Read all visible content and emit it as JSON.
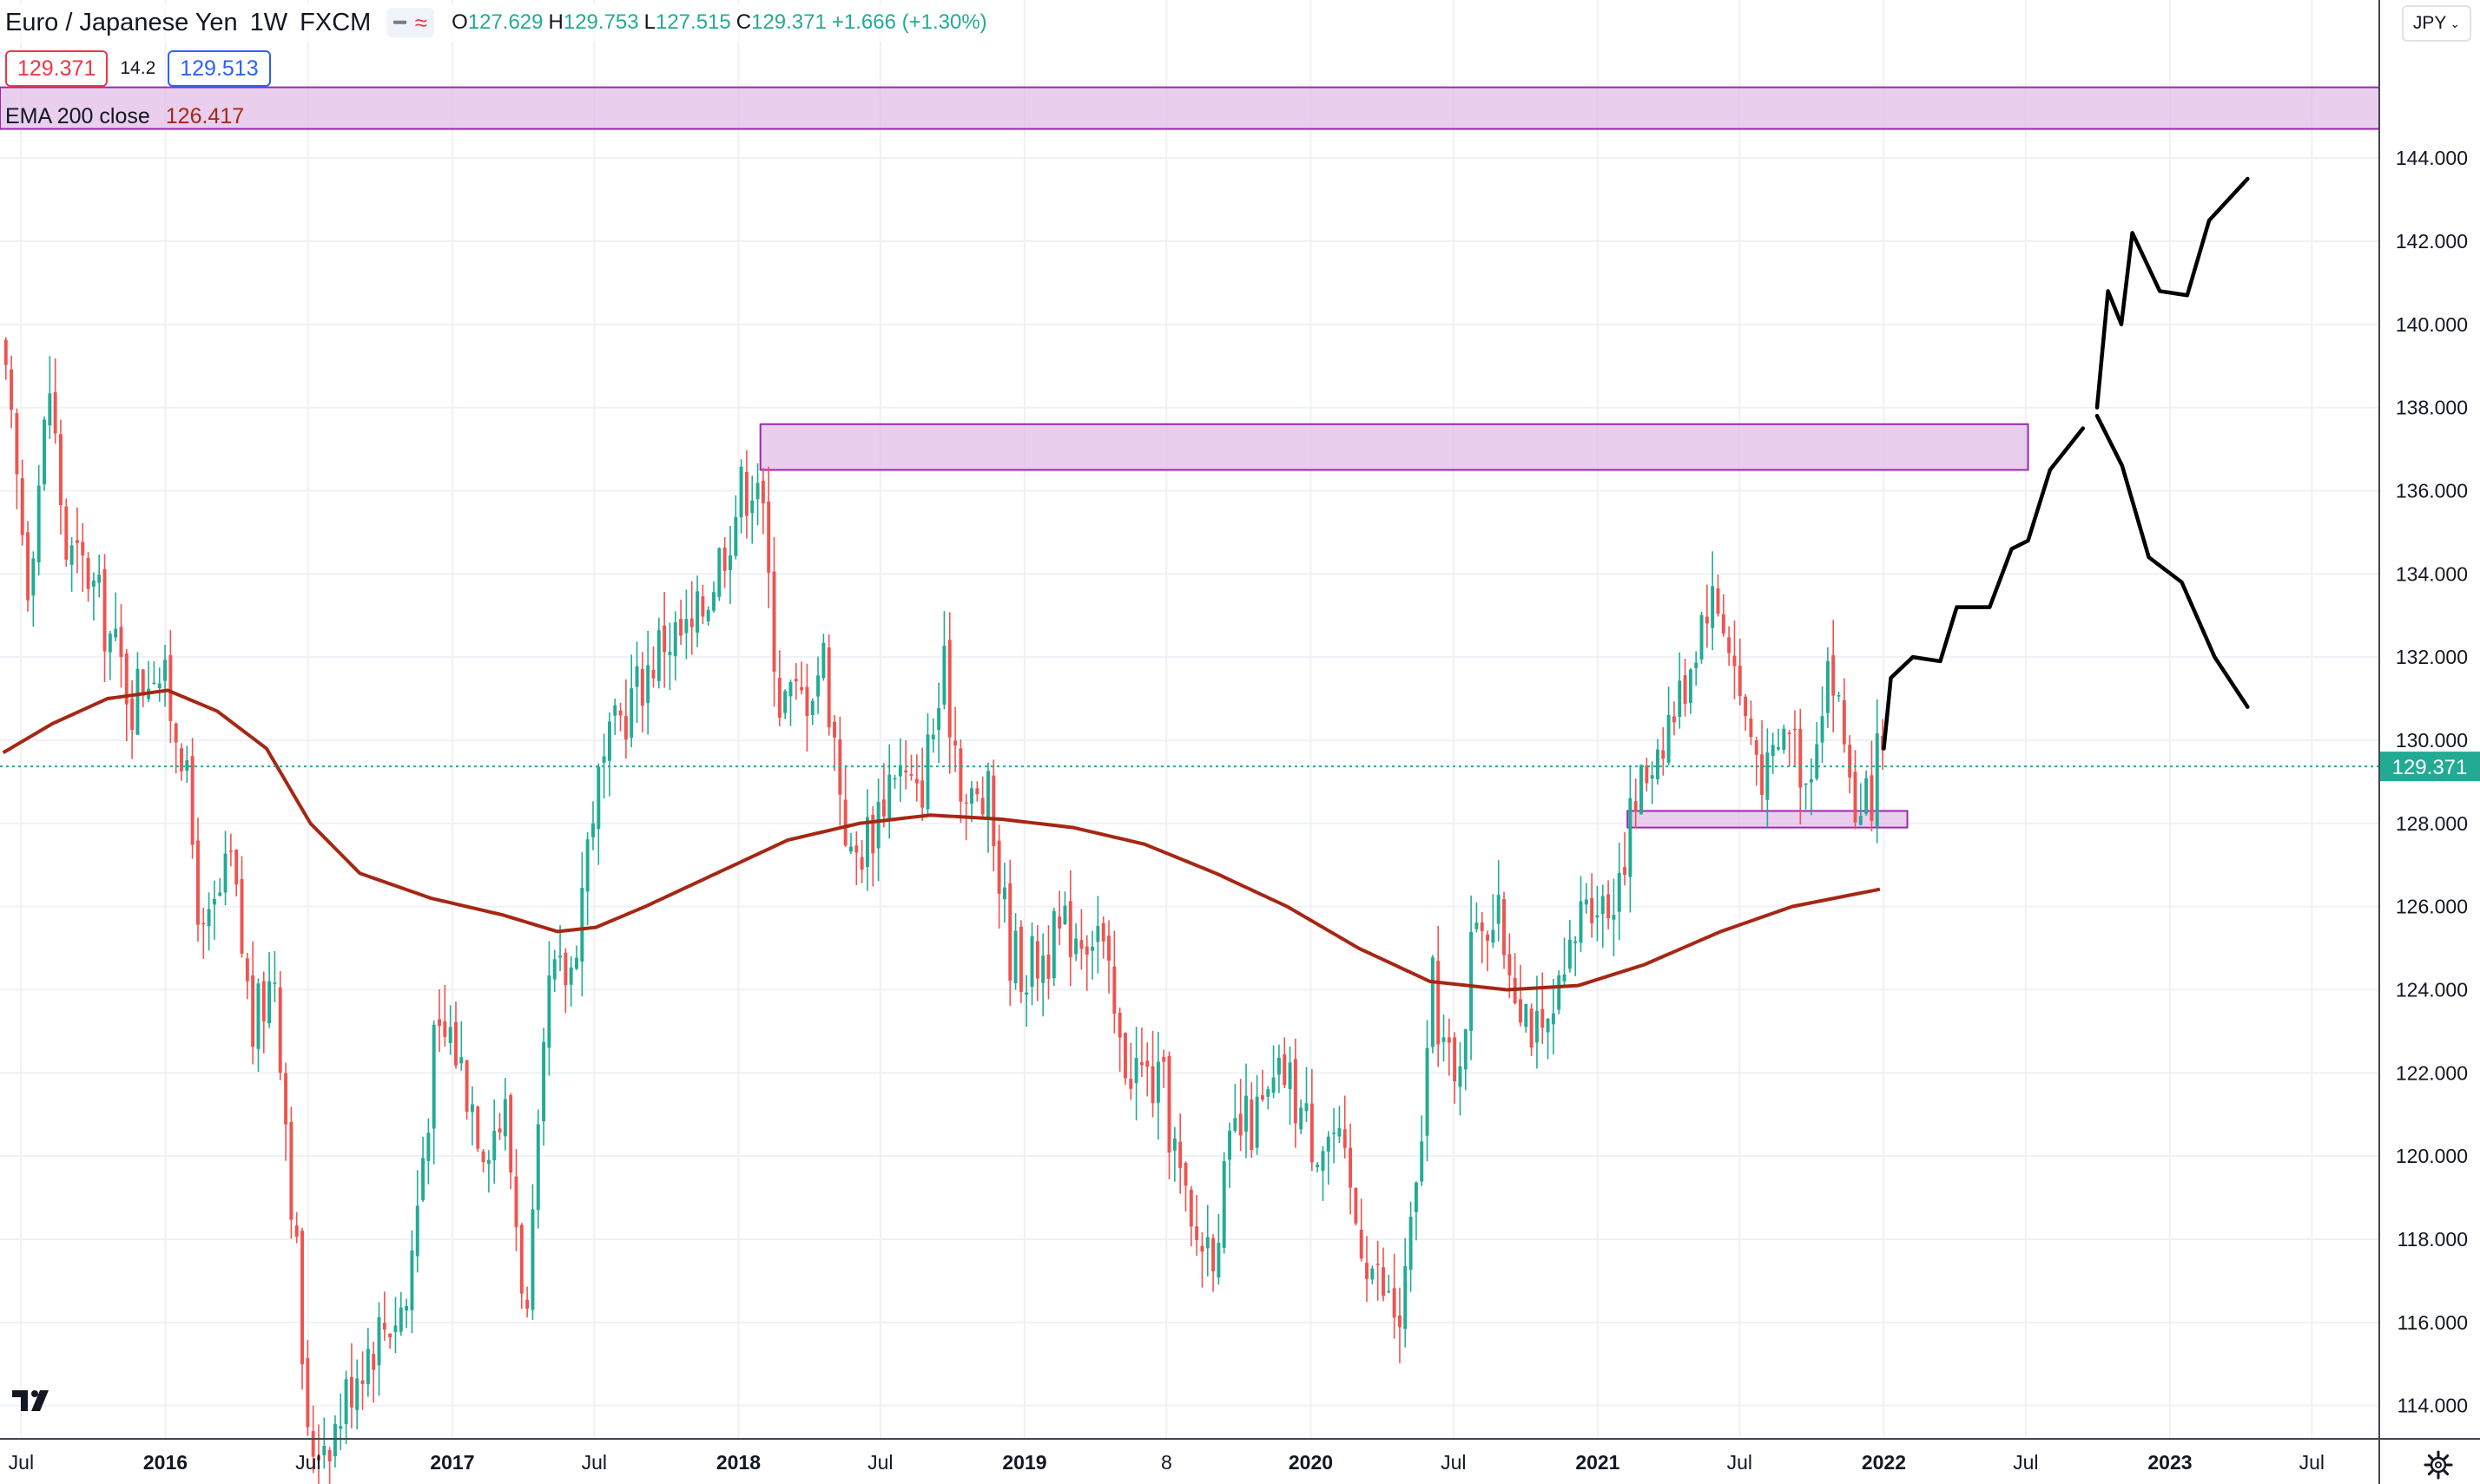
{
  "header": {
    "symbol_title": "Euro / Japanese Yen",
    "interval": "1W",
    "exchange": "FXCM",
    "ohlc": [
      {
        "key": "O",
        "value": "127.629"
      },
      {
        "key": "H",
        "value": "129.753"
      },
      {
        "key": "L",
        "value": "127.515"
      },
      {
        "key": "C",
        "value": "129.371"
      }
    ],
    "change": "+1.666 (+1.30%)",
    "bid_price": "129.371",
    "spread": "14.2",
    "ask_price": "129.513",
    "currency_button": "JPY"
  },
  "indicator": {
    "name": "EMA 200 close",
    "value": "126.417",
    "color": "#a52714"
  },
  "colors": {
    "up": "#22ab94",
    "down": "#ef5350",
    "zone_fill": "#e1bee7",
    "zone_stroke": "#9c27b0",
    "grid": "#eef1f6",
    "current_price": "#22ab94"
  },
  "chart_data": {
    "type": "candlestick",
    "symbol": "EURJPY",
    "timeframe": "1W",
    "y_axis": {
      "range": [
        113.2,
        147.8
      ],
      "ticks": [
        "114.000",
        "116.000",
        "118.000",
        "120.000",
        "122.000",
        "124.000",
        "126.000",
        "128.000",
        "130.000",
        "132.000",
        "134.000",
        "136.000",
        "138.000",
        "140.000",
        "142.000",
        "144.000"
      ],
      "current_price_label": "129.371"
    },
    "x_axis": {
      "range": [
        "2015-06-04",
        "2023-09-25"
      ],
      "ticks": [
        {
          "label": "Jul",
          "date": "2015-07-01",
          "bold": false
        },
        {
          "label": "2016",
          "date": "2016-01-01",
          "bold": true
        },
        {
          "label": "Jul",
          "date": "2016-07-01",
          "bold": false
        },
        {
          "label": "2017",
          "date": "2017-01-01",
          "bold": true
        },
        {
          "label": "Jul",
          "date": "2017-07-01",
          "bold": false
        },
        {
          "label": "2018",
          "date": "2018-01-01",
          "bold": true
        },
        {
          "label": "Jul",
          "date": "2018-07-01",
          "bold": false
        },
        {
          "label": "2019",
          "date": "2019-01-01",
          "bold": true
        },
        {
          "label": "8",
          "date": "2019-07-01",
          "bold": false
        },
        {
          "label": "2020",
          "date": "2020-01-01",
          "bold": true
        },
        {
          "label": "Jul",
          "date": "2020-07-01",
          "bold": false
        },
        {
          "label": "2021",
          "date": "2021-01-01",
          "bold": true
        },
        {
          "label": "Jul",
          "date": "2021-07-01",
          "bold": false
        },
        {
          "label": "2022",
          "date": "2022-01-01",
          "bold": true
        },
        {
          "label": "Jul",
          "date": "2022-07-01",
          "bold": false
        },
        {
          "label": "2023",
          "date": "2023-01-01",
          "bold": true
        },
        {
          "label": "Jul",
          "date": "2023-07-01",
          "bold": false
        }
      ]
    },
    "weeks_from": "2015-06-08",
    "weeks_to": "2021-12-27",
    "price_path_anchors": [
      [
        "2015-06-08",
        139.5
      ],
      [
        "2015-07-13",
        134.0
      ],
      [
        "2015-08-10",
        138.5
      ],
      [
        "2015-08-31",
        134.5
      ],
      [
        "2015-09-28",
        134.0
      ],
      [
        "2015-10-26",
        132.5
      ],
      [
        "2015-11-23",
        131.0
      ],
      [
        "2015-12-21",
        132.0
      ],
      [
        "2016-01-25",
        130.0
      ],
      [
        "2016-02-22",
        125.0
      ],
      [
        "2016-03-28",
        127.0
      ],
      [
        "2016-04-25",
        123.0
      ],
      [
        "2016-05-23",
        124.5
      ],
      [
        "2016-06-20",
        117.5
      ],
      [
        "2016-07-04",
        113.0
      ],
      [
        "2016-08-08",
        113.5
      ],
      [
        "2016-09-05",
        115.0
      ],
      [
        "2016-10-10",
        116.0
      ],
      [
        "2016-11-07",
        116.5
      ],
      [
        "2016-12-12",
        122.5
      ],
      [
        "2017-01-02",
        123.0
      ],
      [
        "2017-02-13",
        120.5
      ],
      [
        "2017-03-13",
        121.0
      ],
      [
        "2017-04-10",
        116.0
      ],
      [
        "2017-05-08",
        124.0
      ],
      [
        "2017-06-05",
        124.5
      ],
      [
        "2017-07-03",
        128.5
      ],
      [
        "2017-08-07",
        130.5
      ],
      [
        "2017-09-04",
        131.5
      ],
      [
        "2017-10-02",
        132.5
      ],
      [
        "2017-11-06",
        132.5
      ],
      [
        "2017-12-04",
        134.0
      ],
      [
        "2018-01-08",
        136.0
      ],
      [
        "2018-01-29",
        136.5
      ],
      [
        "2018-02-26",
        131.0
      ],
      [
        "2018-03-26",
        131.0
      ],
      [
        "2018-04-23",
        132.0
      ],
      [
        "2018-05-28",
        127.0
      ],
      [
        "2018-06-25",
        128.0
      ],
      [
        "2018-07-23",
        129.5
      ],
      [
        "2018-08-20",
        128.5
      ],
      [
        "2018-09-24",
        131.5
      ],
      [
        "2018-10-22",
        128.5
      ],
      [
        "2018-11-19",
        128.5
      ],
      [
        "2018-12-17",
        125.0
      ],
      [
        "2019-01-07",
        124.5
      ],
      [
        "2019-02-04",
        125.0
      ],
      [
        "2019-03-04",
        125.5
      ],
      [
        "2019-04-08",
        125.5
      ],
      [
        "2019-05-06",
        122.5
      ],
      [
        "2019-06-03",
        122.0
      ],
      [
        "2019-07-01",
        121.5
      ],
      [
        "2019-08-05",
        118.0
      ],
      [
        "2019-09-02",
        118.0
      ],
      [
        "2019-09-30",
        120.5
      ],
      [
        "2019-11-04",
        121.0
      ],
      [
        "2019-12-02",
        122.0
      ],
      [
        "2020-01-06",
        120.5
      ],
      [
        "2020-02-03",
        120.5
      ],
      [
        "2020-03-02",
        118.5
      ],
      [
        "2020-03-30",
        117.0
      ],
      [
        "2020-04-27",
        116.0
      ],
      [
        "2020-05-18",
        119.0
      ],
      [
        "2020-06-08",
        124.0
      ],
      [
        "2020-07-06",
        121.5
      ],
      [
        "2020-08-03",
        126.0
      ],
      [
        "2020-08-31",
        125.5
      ],
      [
        "2020-09-28",
        124.0
      ],
      [
        "2020-10-26",
        122.5
      ],
      [
        "2020-11-23",
        124.0
      ],
      [
        "2020-12-21",
        126.5
      ],
      [
        "2021-01-18",
        126.0
      ],
      [
        "2021-02-22",
        128.5
      ],
      [
        "2021-03-22",
        130.0
      ],
      [
        "2021-04-19",
        131.0
      ],
      [
        "2021-05-24",
        133.5
      ],
      [
        "2021-06-14",
        133.0
      ],
      [
        "2021-07-12",
        130.5
      ],
      [
        "2021-08-09",
        129.0
      ],
      [
        "2021-09-06",
        130.5
      ],
      [
        "2021-09-27",
        129.0
      ],
      [
        "2021-10-25",
        132.0
      ],
      [
        "2021-11-15",
        130.0
      ],
      [
        "2021-12-06",
        127.8
      ],
      [
        "2021-12-27",
        129.37
      ]
    ],
    "ema200_anchors": [
      [
        "2015-06-08",
        129.7
      ],
      [
        "2015-08-10",
        130.4
      ],
      [
        "2015-10-19",
        131.0
      ],
      [
        "2016-01-04",
        131.2
      ],
      [
        "2016-03-07",
        130.7
      ],
      [
        "2016-05-09",
        129.8
      ],
      [
        "2016-07-04",
        128.0
      ],
      [
        "2016-09-05",
        126.8
      ],
      [
        "2016-12-05",
        126.2
      ],
      [
        "2017-03-06",
        125.8
      ],
      [
        "2017-05-15",
        125.4
      ],
      [
        "2017-07-03",
        125.5
      ],
      [
        "2017-09-04",
        126.0
      ],
      [
        "2017-12-04",
        126.8
      ],
      [
        "2018-03-05",
        127.6
      ],
      [
        "2018-06-04",
        128.0
      ],
      [
        "2018-09-03",
        128.2
      ],
      [
        "2018-12-03",
        128.1
      ],
      [
        "2019-03-04",
        127.9
      ],
      [
        "2019-06-03",
        127.5
      ],
      [
        "2019-09-02",
        126.8
      ],
      [
        "2019-12-02",
        126.0
      ],
      [
        "2020-03-02",
        125.0
      ],
      [
        "2020-06-01",
        124.2
      ],
      [
        "2020-09-07",
        124.0
      ],
      [
        "2020-12-07",
        124.1
      ],
      [
        "2021-03-01",
        124.6
      ],
      [
        "2021-06-07",
        125.4
      ],
      [
        "2021-09-06",
        126.0
      ],
      [
        "2021-12-27",
        126.417
      ]
    ],
    "supply_demand_zones": [
      {
        "from": "2015-06-04",
        "to": "2023-09-25",
        "low": 144.7,
        "high": 145.7
      },
      {
        "from": "2018-01-29",
        "to": "2022-07-04",
        "low": 136.5,
        "high": 137.6
      },
      {
        "from": "2021-02-08",
        "to": "2022-01-31",
        "low": 127.9,
        "high": 128.3
      }
    ],
    "drawn_projection_paths": [
      [
        [
          "2022-01-01",
          129.8
        ],
        [
          "2022-01-10",
          131.5
        ],
        [
          "2022-02-07",
          132.0
        ],
        [
          "2022-03-14",
          131.9
        ],
        [
          "2022-04-04",
          133.2
        ],
        [
          "2022-05-16",
          133.2
        ],
        [
          "2022-06-13",
          134.6
        ],
        [
          "2022-07-04",
          134.8
        ],
        [
          "2022-08-01",
          136.5
        ],
        [
          "2022-09-12",
          137.5
        ]
      ],
      [
        [
          "2022-09-30",
          138.0
        ],
        [
          "2022-10-14",
          140.8
        ],
        [
          "2022-10-31",
          140.0
        ],
        [
          "2022-11-14",
          142.2
        ],
        [
          "2022-12-19",
          140.8
        ],
        [
          "2023-01-23",
          140.7
        ],
        [
          "2023-02-20",
          142.5
        ],
        [
          "2023-04-10",
          143.5
        ]
      ],
      [
        [
          "2022-09-30",
          137.8
        ],
        [
          "2022-11-01",
          136.6
        ],
        [
          "2022-12-05",
          134.4
        ],
        [
          "2023-01-16",
          133.8
        ],
        [
          "2023-02-27",
          132.0
        ],
        [
          "2023-04-10",
          130.8
        ]
      ]
    ]
  }
}
